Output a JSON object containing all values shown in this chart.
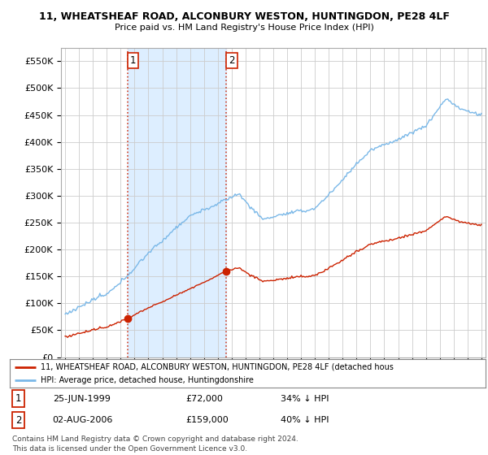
{
  "title1": "11, WHEATSHEAF ROAD, ALCONBURY WESTON, HUNTINGDON, PE28 4LF",
  "title2": "Price paid vs. HM Land Registry's House Price Index (HPI)",
  "ylabel_ticks": [
    "£0",
    "£50K",
    "£100K",
    "£150K",
    "£200K",
    "£250K",
    "£300K",
    "£350K",
    "£400K",
    "£450K",
    "£500K",
    "£550K"
  ],
  "ytick_vals": [
    0,
    50000,
    100000,
    150000,
    200000,
    250000,
    300000,
    350000,
    400000,
    450000,
    500000,
    550000
  ],
  "hpi_color": "#7ab8e8",
  "price_color": "#cc2200",
  "marker1_date_x": 1999.48,
  "marker1_price": 72000,
  "marker2_date_x": 2006.58,
  "marker2_price": 159000,
  "legend_line1": "11, WHEATSHEAF ROAD, ALCONBURY WESTON, HUNTINGDON, PE28 4LF (detached hous",
  "legend_line2": "HPI: Average price, detached house, Huntingdonshire",
  "annotation1_label": "1",
  "annotation1_date": "25-JUN-1999",
  "annotation1_price": "£72,000",
  "annotation1_hpi": "34% ↓ HPI",
  "annotation2_label": "2",
  "annotation2_date": "02-AUG-2006",
  "annotation2_price": "£159,000",
  "annotation2_hpi": "40% ↓ HPI",
  "footnote1": "Contains HM Land Registry data © Crown copyright and database right 2024.",
  "footnote2": "This data is licensed under the Open Government Licence v3.0.",
  "bg_color": "#ffffff",
  "grid_color": "#cccccc",
  "shade_color": "#ddeeff",
  "ylim_max": 575000,
  "xlim_start": 1994.7,
  "xlim_end": 2025.3
}
